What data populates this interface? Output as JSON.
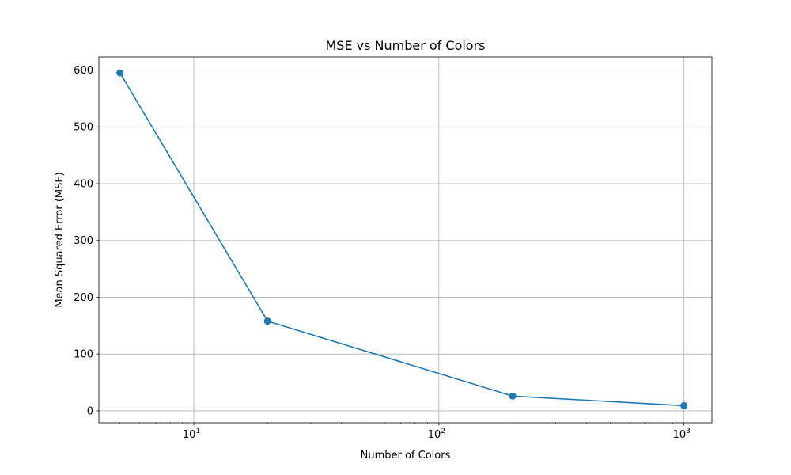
{
  "chart_data": {
    "type": "line",
    "title": "MSE vs Number of Colors",
    "xlabel": "Number of Colors",
    "ylabel": "Mean Squared Error (MSE)",
    "xscale": "log",
    "xlim": [
      4.1,
      1300
    ],
    "ylim": [
      -21,
      623
    ],
    "grid": true,
    "x": [
      5,
      20,
      200,
      1000
    ],
    "series": [
      {
        "values": [
          595,
          158,
          26,
          9
        ]
      }
    ],
    "xticks": [
      {
        "value": 10,
        "base": "10",
        "exp": "1"
      },
      {
        "value": 100,
        "base": "10",
        "exp": "2"
      },
      {
        "value": 1000,
        "base": "10",
        "exp": "3"
      }
    ],
    "yticks": [
      {
        "value": 0,
        "label": "0"
      },
      {
        "value": 100,
        "label": "100"
      },
      {
        "value": 200,
        "label": "200"
      },
      {
        "value": 300,
        "label": "300"
      },
      {
        "value": 400,
        "label": "400"
      },
      {
        "value": 500,
        "label": "500"
      },
      {
        "value": 600,
        "label": "600"
      }
    ],
    "colors": {
      "line": "#1f77b4",
      "grid": "#b0b0b0",
      "axis": "#000000"
    }
  }
}
